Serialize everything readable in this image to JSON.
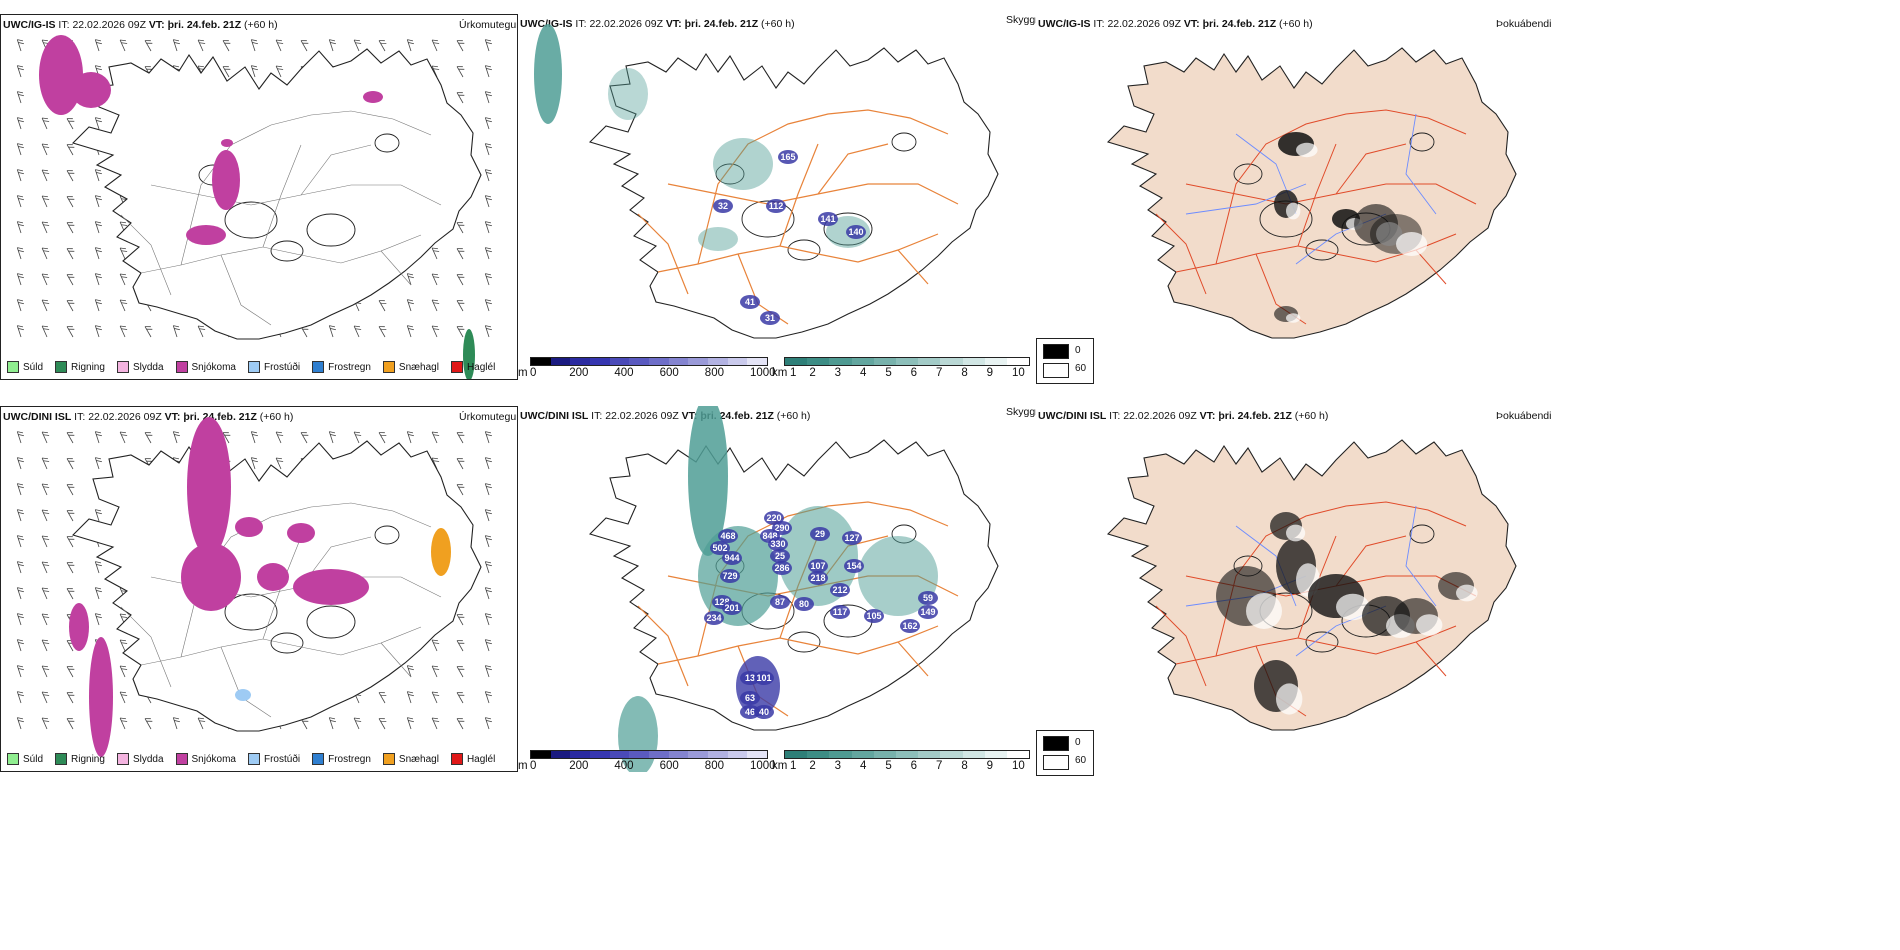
{
  "colors": {
    "suld": "#90ee90",
    "rigning": "#2e8b57",
    "slydda": "#f4b4e0",
    "snjokoma": "#c040a0",
    "frostudi": "#9ecbf4",
    "frostregn": "#2f7fd0",
    "snaehagl": "#f0a020",
    "haglel": "#e01818",
    "land_fog": "#f2dccb",
    "roads": "#e8833a",
    "rivers": "#6d8cff",
    "cloud": "#4f9e95",
    "ceiling": "#3a3aa6"
  },
  "rows": [
    {
      "precip": {
        "model": "UWC/IG-IS",
        "it_label": "IT:",
        "it": "22.02.2026 09Z",
        "vt_label": "VT:",
        "vt": "þri. 24.feb. 21Z",
        "lead": "(+60 h)",
        "tag": "Úrkomutegund"
      },
      "cloud": {
        "model": "UWC/IG-IS",
        "it_label": "IT:",
        "it": "22.02.2026 09Z",
        "vt_label": "VT:",
        "vt": "þri. 24.feb. 21Z",
        "lead": "(+60 h)",
        "tag": "Skyggni",
        "labels": [
          "32",
          "112",
          "165",
          "141",
          "140",
          "41",
          "31"
        ]
      },
      "fog": {
        "model": "UWC/IG-IS",
        "it_label": "IT:",
        "it": "22.02.2026 09Z",
        "vt_label": "VT:",
        "vt": "þri. 24.feb. 21Z",
        "lead": "(+60 h)",
        "tag": "Þokuábendi"
      }
    },
    {
      "precip": {
        "model": "UWC/DINI ISL",
        "it_label": "IT:",
        "it": "22.02.2026 09Z",
        "vt_label": "VT:",
        "vt": "þri. 24.feb. 21Z",
        "lead": "(+60 h)",
        "tag": "Úrkomutegund"
      },
      "cloud": {
        "model": "UWC/DINI ISL",
        "it_label": "IT:",
        "it": "22.02.2026 09Z",
        "vt_label": "VT:",
        "vt": "þri. 24.feb. 21Z",
        "lead": "(+60 h)",
        "tag": "Skyggni",
        "labels": [
          "468",
          "502",
          "944",
          "729",
          "128",
          "201",
          "234",
          "220",
          "290",
          "848",
          "330",
          "25",
          "286",
          "107",
          "218",
          "29",
          "127",
          "154",
          "212",
          "87",
          "80",
          "117",
          "105",
          "59",
          "149",
          "162",
          "13",
          "101",
          "63",
          "46",
          "40"
        ]
      },
      "fog": {
        "model": "UWC/DINI ISL",
        "it_label": "IT:",
        "it": "22.02.2026 09Z",
        "vt_label": "VT:",
        "vt": "þri. 24.feb. 21Z",
        "lead": "(+60 h)",
        "tag": "Þokuábendi"
      }
    }
  ],
  "precip_legend": [
    {
      "key": "suld",
      "label": "Súld"
    },
    {
      "key": "rigning",
      "label": "Rigning"
    },
    {
      "key": "slydda",
      "label": "Slydda"
    },
    {
      "key": "snjokoma",
      "label": "Snjókoma"
    },
    {
      "key": "frostudi",
      "label": "Frostúði"
    },
    {
      "key": "frostregn",
      "label": "Frostregn"
    },
    {
      "key": "snaehagl",
      "label": "Snæhagl"
    },
    {
      "key": "haglel",
      "label": "Haglél"
    }
  ],
  "ceiling_bar": {
    "unit": "m",
    "ticks": [
      "0",
      "200",
      "400",
      "600",
      "800",
      "1000"
    ],
    "colors": [
      "#000000",
      "#1a1a80",
      "#2a2aa0",
      "#3636b0",
      "#4a4ab8",
      "#5a5ac0",
      "#6e6ec8",
      "#8484d0",
      "#9a9ad8",
      "#b2b2e2",
      "#cacaec",
      "#e4e4f6"
    ]
  },
  "vis_bar": {
    "unit": "km",
    "ticks": [
      "1",
      "2",
      "3",
      "4",
      "5",
      "6",
      "7",
      "8",
      "9",
      "10"
    ],
    "colors": [
      "#2e7f78",
      "#3d8d85",
      "#4f9a92",
      "#63a69f",
      "#78b2ac",
      "#8dbfba",
      "#a3cbc7",
      "#bad8d5",
      "#d1e6e4",
      "#e8f3f2",
      "#ffffff"
    ]
  },
  "fog_legend": [
    {
      "label": "0"
    },
    {
      "label": "60"
    }
  ]
}
